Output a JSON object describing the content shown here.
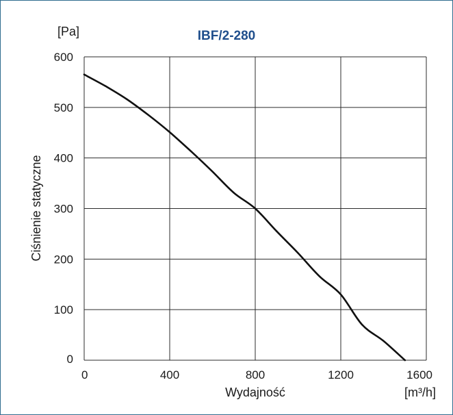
{
  "chart_data": {
    "type": "line",
    "title": "IBF/2-280",
    "xlabel": "Wydajność",
    "ylabel": "Ciśnienie statyczne",
    "x_unit": "[m³/h]",
    "y_unit": "[Pa]",
    "xlim": [
      0,
      1600
    ],
    "ylim": [
      0,
      600
    ],
    "x_ticks": [
      "0",
      "400",
      "800",
      "1200",
      "1600"
    ],
    "y_ticks": [
      "0",
      "100",
      "200",
      "300",
      "400",
      "500",
      "600"
    ],
    "grid": true,
    "series": [
      {
        "x": [
          0,
          100,
          200,
          300,
          400,
          500,
          600,
          700,
          800,
          900,
          1000,
          1100,
          1200,
          1300,
          1400,
          1500
        ],
        "y": [
          565,
          542,
          516,
          485,
          451,
          413,
          373,
          331,
          300,
          255,
          212,
          166,
          130,
          70,
          38,
          0
        ]
      }
    ],
    "colors": {
      "line": "#111111",
      "grid": "#2b2b2b",
      "title": "#1f4e8c",
      "frame": "#2f6c8f"
    }
  }
}
